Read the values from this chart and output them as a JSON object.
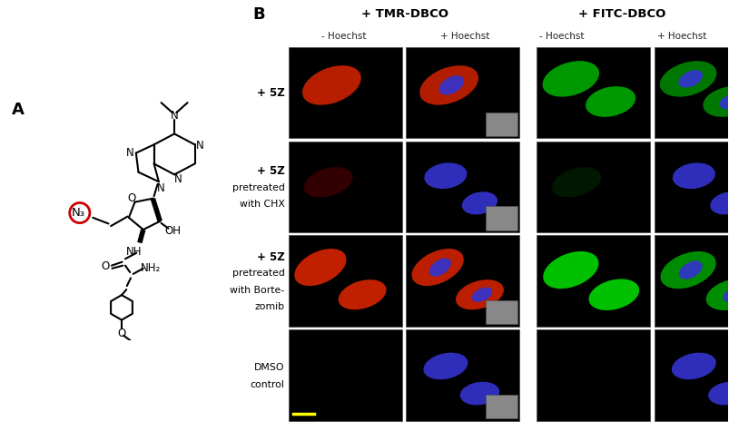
{
  "fig_width": 8.0,
  "fig_height": 4.83,
  "dpi": 100,
  "bg_color": "#ffffff",
  "panel_A_label": "A",
  "panel_B_label": "B",
  "tmr_label": "+ TMR-DBCO",
  "fitc_label": "+ FITC-DBCO",
  "col_labels": [
    "- Hoechst",
    "+ Hoechst",
    "- Hoechst",
    "+ Hoechst"
  ],
  "row_labels": [
    "+ 5Z",
    "+ 5Z\npretreated\nwith CHX",
    "+ 5Z\npretreated\nwith Borte-\nzomib",
    "DMSO\ncontrol"
  ],
  "row_bold": [
    true,
    true,
    true,
    false
  ],
  "tmr_color": "#cc2200",
  "fitc_color": "#00aa00",
  "hoechst_color": "#3333cc",
  "circle_color": "#cc0000",
  "yellow_bar_color": "#ffff00",
  "inset_gray": "#888888",
  "cell_border": "#444444"
}
